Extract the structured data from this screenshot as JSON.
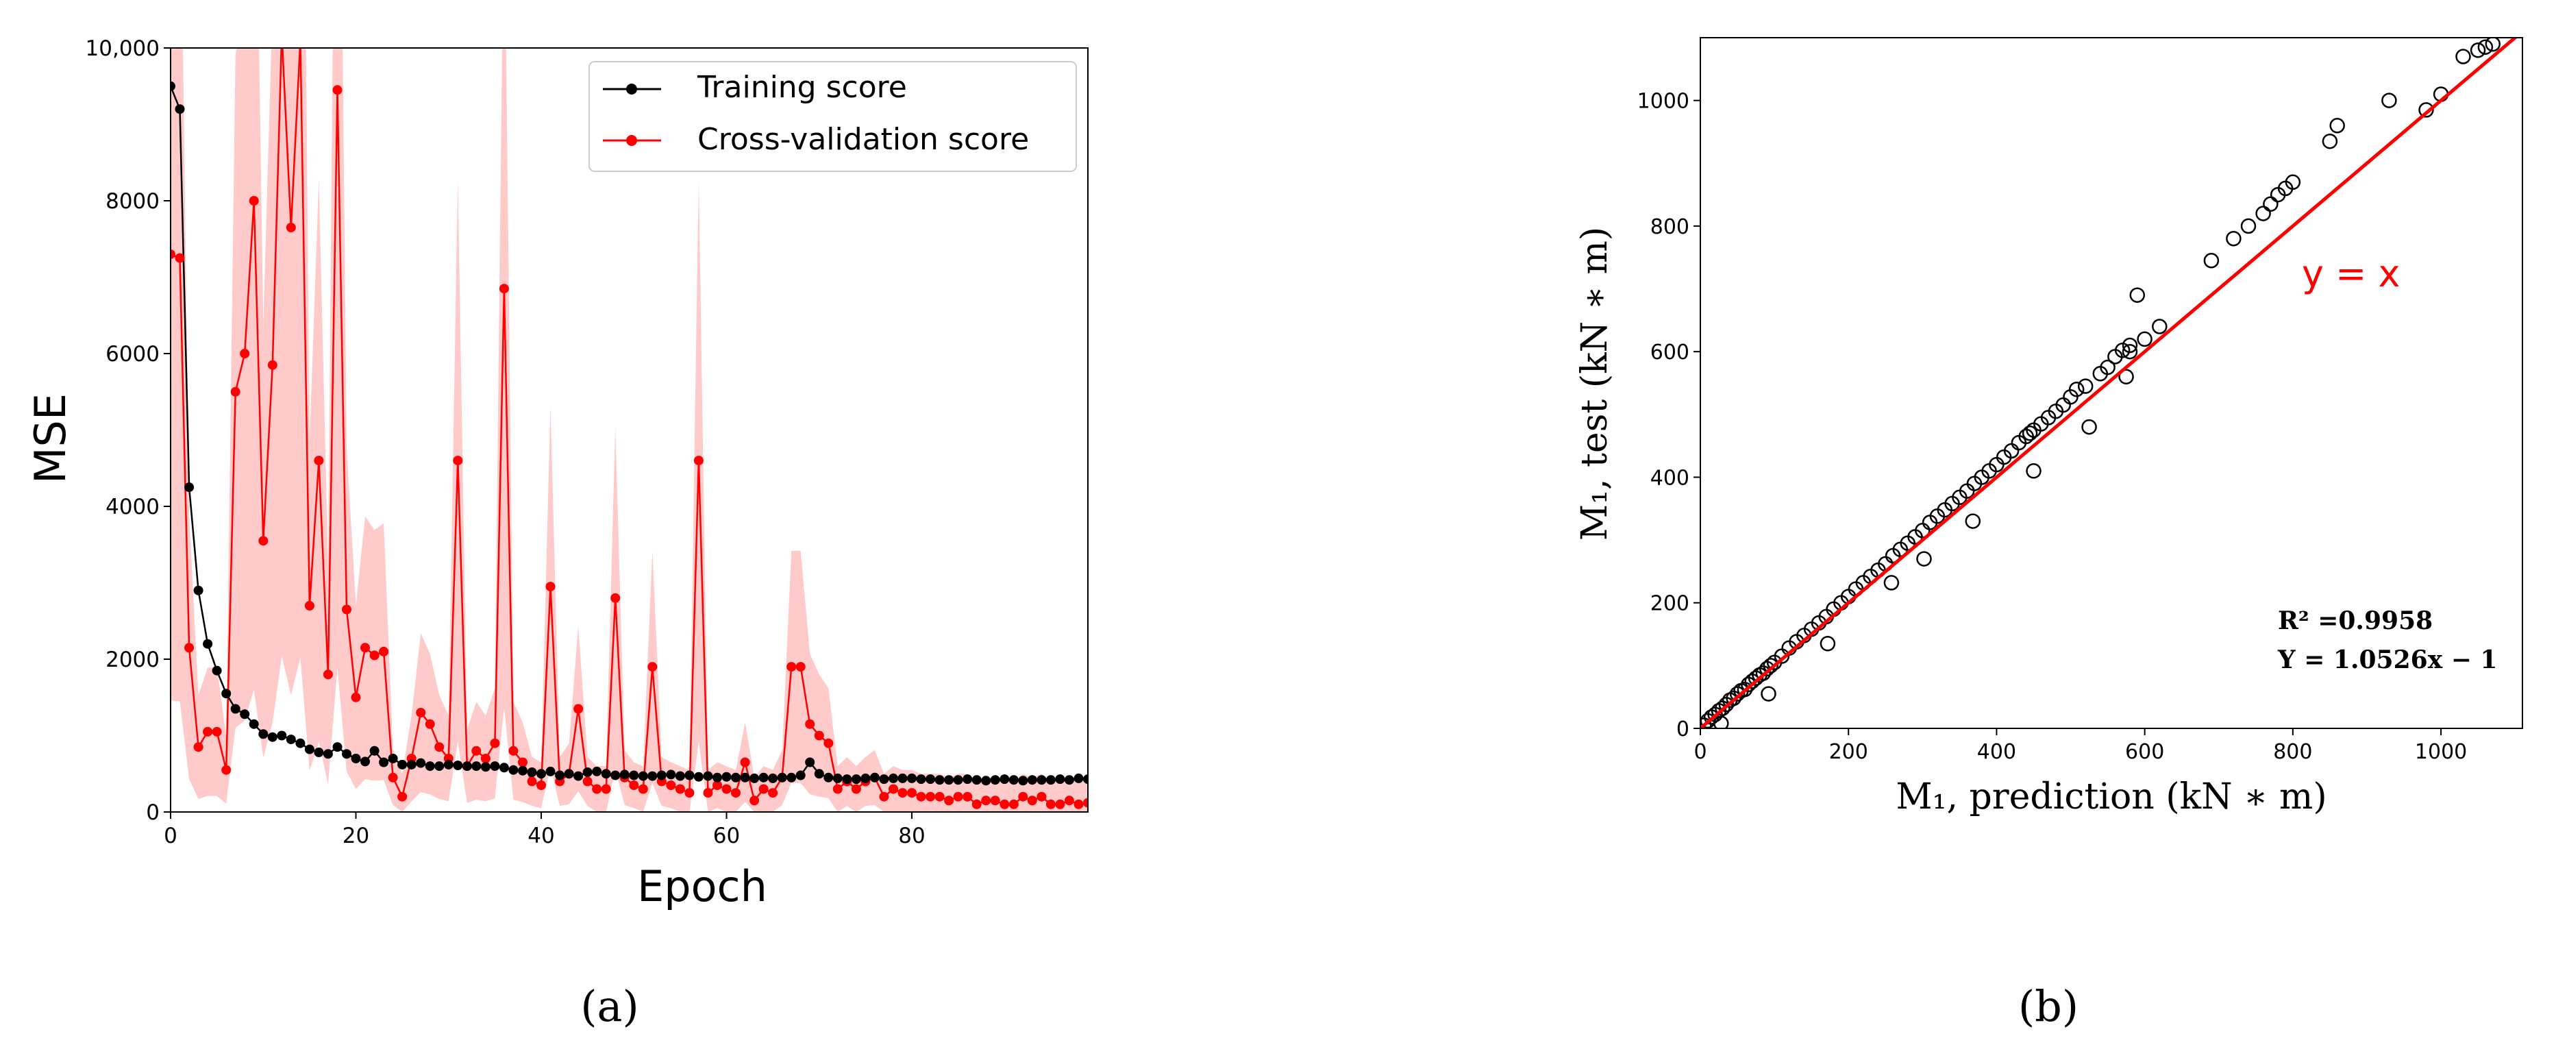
{
  "chart_data": [
    {
      "panel_label": "(a)",
      "type": "line",
      "xlabel": "Epoch",
      "ylabel": "MSE",
      "xlim": [
        0,
        99
      ],
      "ylim": [
        0,
        10000
      ],
      "xticks": [
        0,
        20,
        40,
        60,
        80
      ],
      "xtick_labels": [
        "0",
        "20",
        "40",
        "60",
        "80"
      ],
      "yticks": [
        0,
        2000,
        4000,
        6000,
        8000,
        10000
      ],
      "ytick_labels": [
        "0",
        "2000",
        "4000",
        "6000",
        "8000",
        "10,000"
      ],
      "grid": false,
      "legend_position": "top-right",
      "colors": {
        "training": "#000000",
        "cv": "#ff0000",
        "band": "#ffb8b8"
      },
      "series": [
        {
          "name": "Training score",
          "x": [
            0,
            1,
            2,
            3,
            4,
            5,
            6,
            7,
            8,
            9,
            10,
            11,
            12,
            13,
            14,
            15,
            16,
            17,
            18,
            19,
            20,
            21,
            22,
            23,
            24,
            25,
            26,
            27,
            28,
            29,
            30,
            31,
            32,
            33,
            34,
            35,
            36,
            37,
            38,
            39,
            40,
            41,
            42,
            43,
            44,
            45,
            46,
            47,
            48,
            49,
            50,
            51,
            52,
            53,
            54,
            55,
            56,
            57,
            58,
            59,
            60,
            61,
            62,
            63,
            64,
            65,
            66,
            67,
            68,
            69,
            70,
            71,
            72,
            73,
            74,
            75,
            76,
            77,
            78,
            79,
            80,
            81,
            82,
            83,
            84,
            85,
            86,
            87,
            88,
            89,
            90,
            91,
            92,
            93,
            94,
            95,
            96,
            97,
            98,
            99
          ],
          "values": [
            9500,
            9200,
            4250,
            2900,
            2200,
            1850,
            1550,
            1350,
            1280,
            1150,
            1020,
            980,
            1000,
            950,
            900,
            820,
            780,
            760,
            850,
            760,
            700,
            660,
            800,
            650,
            700,
            620,
            620,
            640,
            600,
            600,
            620,
            610,
            600,
            600,
            590,
            600,
            580,
            550,
            540,
            520,
            500,
            530,
            480,
            500,
            470,
            520,
            530,
            500,
            480,
            490,
            480,
            470,
            470,
            480,
            490,
            470,
            480,
            460,
            470,
            450,
            460,
            450,
            450,
            440,
            450,
            440,
            450,
            450,
            480,
            650,
            500,
            450,
            440,
            430,
            430,
            440,
            450,
            430,
            440,
            440,
            440,
            430,
            430,
            420,
            420,
            420,
            430,
            420,
            410,
            420,
            430,
            420,
            410,
            420,
            420,
            420,
            430,
            420,
            440,
            430
          ]
        },
        {
          "name": "Cross-validation score",
          "x": [
            0,
            1,
            2,
            3,
            4,
            5,
            6,
            7,
            8,
            9,
            10,
            11,
            12,
            13,
            14,
            15,
            16,
            17,
            18,
            19,
            20,
            21,
            22,
            23,
            24,
            25,
            26,
            27,
            28,
            29,
            30,
            31,
            32,
            33,
            34,
            35,
            36,
            37,
            38,
            39,
            40,
            41,
            42,
            43,
            44,
            45,
            46,
            47,
            48,
            49,
            50,
            51,
            52,
            53,
            54,
            55,
            56,
            57,
            58,
            59,
            60,
            61,
            62,
            63,
            64,
            65,
            66,
            67,
            68,
            69,
            70,
            71,
            72,
            73,
            74,
            75,
            76,
            77,
            78,
            79,
            80,
            81,
            82,
            83,
            84,
            85,
            86,
            87,
            88,
            89,
            90,
            91,
            92,
            93,
            94,
            95,
            96,
            97,
            98,
            99
          ],
          "values": [
            7300,
            7250,
            2150,
            850,
            1050,
            1050,
            550,
            5500,
            6000,
            8000,
            3550,
            5850,
            10200,
            7650,
            10100,
            2700,
            4600,
            1800,
            9450,
            2650,
            1500,
            2150,
            2050,
            2100,
            450,
            200,
            700,
            1300,
            1150,
            850,
            700,
            4600,
            600,
            800,
            700,
            900,
            6850,
            800,
            650,
            400,
            350,
            2950,
            400,
            500,
            1350,
            400,
            300,
            300,
            2800,
            450,
            350,
            300,
            1900,
            400,
            350,
            300,
            250,
            4600,
            250,
            350,
            300,
            250,
            650,
            150,
            300,
            250,
            450,
            1900,
            1900,
            1150,
            1000,
            900,
            300,
            400,
            300,
            400,
            450,
            200,
            300,
            250,
            250,
            200,
            200,
            200,
            150,
            200,
            200,
            100,
            150,
            150,
            100,
            100,
            200,
            150,
            200,
            100,
            100,
            150,
            100,
            120
          ]
        }
      ]
    },
    {
      "panel_label": "(b)",
      "type": "scatter",
      "xlabel": "M₁, prediction (kN ∗ m)",
      "ylabel": "M₁, test (kN ∗ m)",
      "xlim": [
        0,
        1110
      ],
      "ylim": [
        0,
        1100
      ],
      "xticks": [
        0,
        200,
        400,
        600,
        800,
        1000
      ],
      "xtick_labels": [
        "0",
        "200",
        "400",
        "600",
        "800",
        "1000"
      ],
      "yticks": [
        0,
        200,
        400,
        600,
        800,
        1000
      ],
      "ytick_labels": [
        "0",
        "200",
        "400",
        "600",
        "800",
        "1000"
      ],
      "grid": false,
      "reference_line": {
        "label": "y = x",
        "slope": 1,
        "intercept": 0,
        "color": "#ff0000"
      },
      "annotations": [
        "R² =0.9958",
        "Y = 1.0526x − 1"
      ],
      "points": {
        "x": [
          5,
          10,
          15,
          20,
          25,
          30,
          35,
          40,
          45,
          50,
          55,
          60,
          65,
          70,
          75,
          80,
          85,
          90,
          95,
          100,
          110,
          120,
          130,
          140,
          150,
          160,
          170,
          180,
          190,
          200,
          210,
          220,
          230,
          240,
          250,
          260,
          270,
          280,
          290,
          300,
          310,
          320,
          330,
          340,
          350,
          360,
          370,
          380,
          390,
          400,
          410,
          420,
          430,
          440,
          450,
          460,
          470,
          480,
          490,
          500,
          520,
          540,
          550,
          560,
          570,
          580,
          600,
          620,
          690,
          720,
          740,
          760,
          770,
          780,
          790,
          800,
          850,
          860,
          930,
          980,
          1000,
          1030,
          1050,
          1060,
          1070,
          28,
          92,
          172,
          258,
          302,
          368,
          450,
          445,
          508,
          525,
          575,
          580,
          590
        ],
        "y": [
          5,
          12,
          18,
          22,
          28,
          32,
          38,
          45,
          48,
          55,
          60,
          62,
          70,
          75,
          80,
          85,
          88,
          95,
          100,
          105,
          115,
          128,
          138,
          148,
          158,
          168,
          178,
          190,
          200,
          210,
          222,
          232,
          242,
          252,
          262,
          275,
          285,
          295,
          305,
          315,
          328,
          338,
          348,
          358,
          368,
          378,
          390,
          400,
          410,
          420,
          432,
          442,
          455,
          465,
          475,
          485,
          495,
          505,
          515,
          528,
          545,
          565,
          575,
          592,
          602,
          610,
          620,
          640,
          745,
          780,
          800,
          820,
          835,
          850,
          860,
          870,
          935,
          960,
          1000,
          985,
          1010,
          1070,
          1080,
          1085,
          1090,
          8,
          55,
          135,
          232,
          270,
          330,
          410,
          470,
          540,
          480,
          560,
          600,
          690
        ]
      }
    }
  ]
}
